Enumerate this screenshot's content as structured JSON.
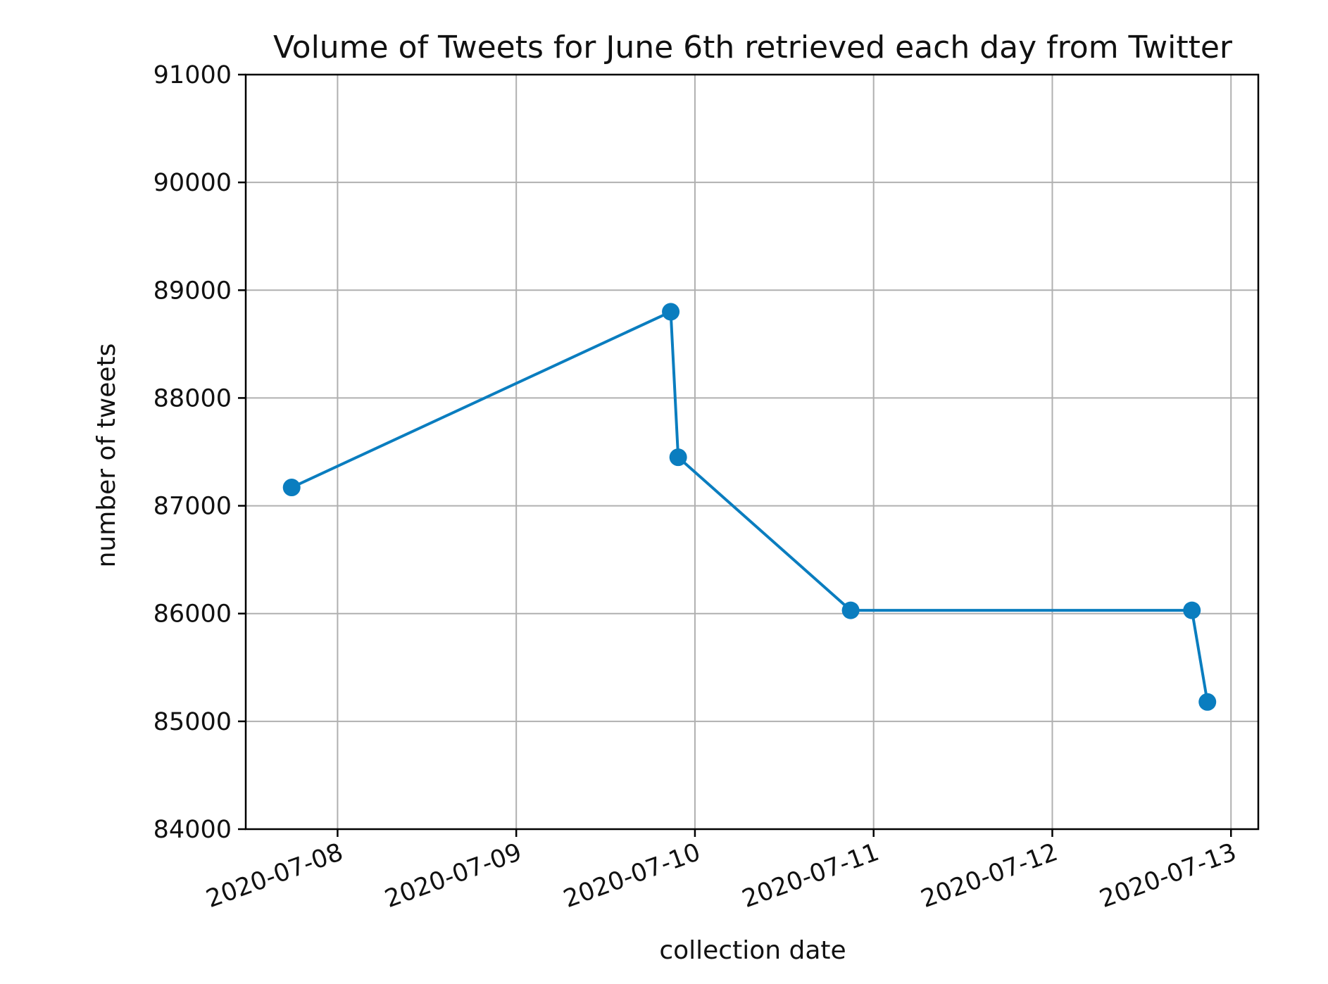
{
  "chart_data": {
    "type": "line",
    "title": "Volume of Tweets for June 6th retrieved each day from Twitter",
    "xlabel": "collection date",
    "ylabel": "number of tweets",
    "x_ticks": [
      "2020-07-08",
      "2020-07-09",
      "2020-07-10",
      "2020-07-11",
      "2020-07-12",
      "2020-07-13"
    ],
    "y_ticks": [
      84000,
      85000,
      86000,
      87000,
      88000,
      89000,
      90000,
      91000
    ],
    "xlim": [
      "2020-07-07 11:40",
      "2020-07-13 03:40"
    ],
    "ylim": [
      84000,
      91000
    ],
    "grid": true,
    "color": "#0a7dbf",
    "marker": "circle",
    "series": [
      {
        "x": [
          "2020-07-07 17:50",
          "2020-07-09 20:45",
          "2020-07-09 21:45",
          "2020-07-10 20:55",
          "2020-07-12 18:45",
          "2020-07-12 20:50"
        ],
        "y": [
          87170,
          88800,
          87450,
          86030,
          86030,
          85180
        ]
      }
    ]
  }
}
